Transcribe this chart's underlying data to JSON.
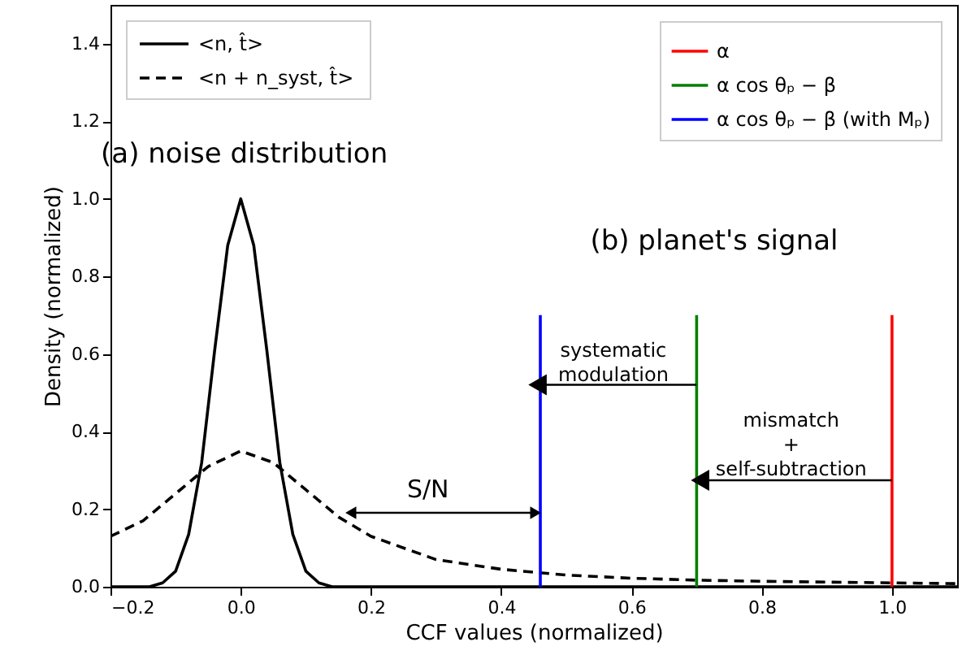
{
  "chart_data": {
    "type": "line",
    "xlabel": "CCF values (normalized)",
    "ylabel": "Density (normalized)",
    "xlim": [
      -0.2,
      1.1
    ],
    "ylim": [
      0,
      1.5
    ],
    "xticks": [
      {
        "value": -0.2,
        "label": "−0.2"
      },
      {
        "value": 0,
        "label": "0.0"
      },
      {
        "value": 0.2,
        "label": "0.2"
      },
      {
        "value": 0.4,
        "label": "0.4"
      },
      {
        "value": 0.6,
        "label": "0.6"
      },
      {
        "value": 0.8,
        "label": "0.8"
      },
      {
        "value": 1,
        "label": "1.0"
      }
    ],
    "yticks": [
      {
        "value": 0,
        "label": "0.0"
      },
      {
        "value": 0.2,
        "label": "0.2"
      },
      {
        "value": 0.4,
        "label": "0.4"
      },
      {
        "value": 0.6,
        "label": "0.6"
      },
      {
        "value": 0.8,
        "label": "0.8"
      },
      {
        "value": 1,
        "label": "1.0"
      },
      {
        "value": 1.2,
        "label": "1.2"
      },
      {
        "value": 1.4,
        "label": "1.4"
      }
    ],
    "grid": false,
    "legend": "top",
    "series": [
      {
        "name": "<n, t̂>",
        "color": "#000000",
        "line_style": "solid",
        "x": [
          -0.2,
          -0.14,
          -0.12,
          -0.1,
          -0.08,
          -0.06,
          -0.04,
          -0.02,
          0.0,
          0.02,
          0.04,
          0.06,
          0.08,
          0.1,
          0.12,
          0.14,
          0.2,
          1.1
        ],
        "values": [
          0.0,
          0.0,
          0.01,
          0.04,
          0.135,
          0.32,
          0.61,
          0.88,
          1.0,
          0.88,
          0.61,
          0.32,
          0.135,
          0.04,
          0.01,
          0.0,
          0.0,
          0.0
        ]
      },
      {
        "name": "<n + n_syst, t̂>",
        "color": "#000000",
        "line_style": "dashed",
        "x": [
          -0.2,
          -0.15,
          -0.1,
          -0.05,
          0.0,
          0.05,
          0.1,
          0.15,
          0.2,
          0.3,
          0.4,
          0.5,
          0.6,
          0.7,
          0.8,
          0.9,
          1.0,
          1.1
        ],
        "values": [
          0.13,
          0.17,
          0.24,
          0.31,
          0.35,
          0.32,
          0.25,
          0.18,
          0.13,
          0.07,
          0.045,
          0.03,
          0.022,
          0.017,
          0.014,
          0.012,
          0.01,
          0.008
        ]
      },
      {
        "name": "α",
        "color": "#ff0000",
        "x": [
          1.0,
          1.0
        ],
        "values": [
          0.0,
          0.7
        ]
      },
      {
        "name": "α cos θₚ − β",
        "color": "#008000",
        "x": [
          0.7,
          0.7
        ],
        "values": [
          0.0,
          0.7
        ]
      },
      {
        "name": "α cos θₚ − β (with Mₚ)",
        "color": "#0000ff",
        "x": [
          0.46,
          0.46
        ],
        "values": [
          0.0,
          0.7
        ]
      }
    ],
    "annotations": [
      "(a) noise distribution",
      "(b) planet's signal",
      "S/N",
      "systematic\nmodulation",
      "mismatch\n+\nself-subtraction"
    ]
  }
}
